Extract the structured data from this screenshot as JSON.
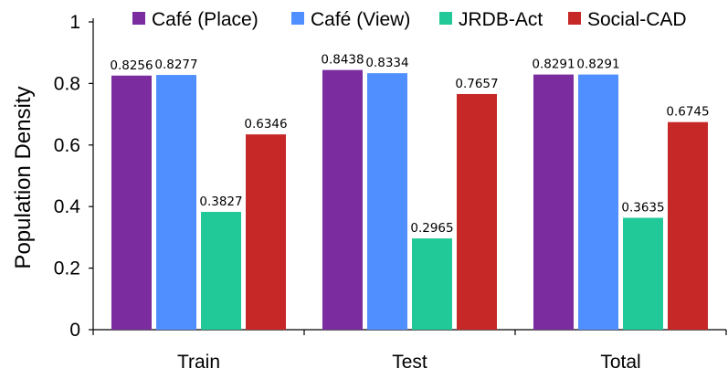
{
  "chart_data": {
    "type": "bar",
    "title": "",
    "xlabel": "",
    "ylabel": "Population Density",
    "ylim": [
      0,
      1
    ],
    "yticks": [
      0,
      0.2,
      0.4,
      0.6,
      0.8,
      1
    ],
    "ytick_labels": [
      "0",
      "0.2",
      "0.4",
      "0.6",
      "0.8",
      "1"
    ],
    "grid": false,
    "legend_position": "top",
    "categories": [
      "Train",
      "Test",
      "Total"
    ],
    "series": [
      {
        "name": "Café (Place)",
        "color": "#7B2C9E",
        "values": [
          0.8256,
          0.8438,
          0.8291
        ],
        "labels": [
          "0.8256",
          "0.8438",
          "0.8291"
        ]
      },
      {
        "name": "Café (View)",
        "color": "#4F8FFF",
        "values": [
          0.8277,
          0.8334,
          0.8291
        ],
        "labels": [
          "0.8277",
          "0.8334",
          "0.8291"
        ]
      },
      {
        "name": "JRDB-Act",
        "color": "#20C997",
        "values": [
          0.3827,
          0.2965,
          0.3635
        ],
        "labels": [
          "0.3827",
          "0.2965",
          "0.3635"
        ]
      },
      {
        "name": "Social-CAD",
        "color": "#C62828",
        "values": [
          0.6346,
          0.7657,
          0.6745
        ],
        "labels": [
          "0.6346",
          "0.7657",
          "0.6745"
        ]
      }
    ]
  }
}
